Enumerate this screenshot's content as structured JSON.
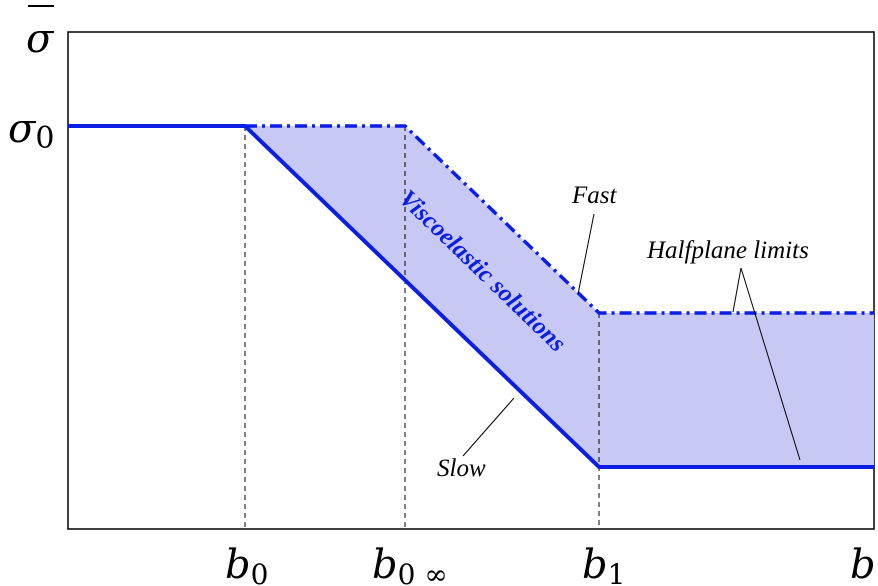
{
  "axes": {
    "y_label": "σ",
    "x_label": "b",
    "y_tick_base": "σ",
    "y_tick_sub": "0"
  },
  "x_ticks": [
    {
      "base": "b",
      "sub": "0"
    },
    {
      "base": "b",
      "sub": "0 ∞"
    },
    {
      "base": "b",
      "sub": "1"
    }
  ],
  "annotations": {
    "fast": "Fast",
    "slow": "Slow",
    "halfplane": "Halfplane limits",
    "region": "Viscoelastic solutions"
  },
  "colors": {
    "curve": "#0a1ee6",
    "fill": "#c8c8f5",
    "axis": "#000000"
  },
  "chart_data": {
    "type": "area",
    "x_categories": [
      "b0",
      "b0∞",
      "b1",
      "b"
    ],
    "series": [
      {
        "name": "Fast",
        "style": "dash-dot"
      },
      {
        "name": "Slow",
        "style": "solid"
      }
    ]
  }
}
